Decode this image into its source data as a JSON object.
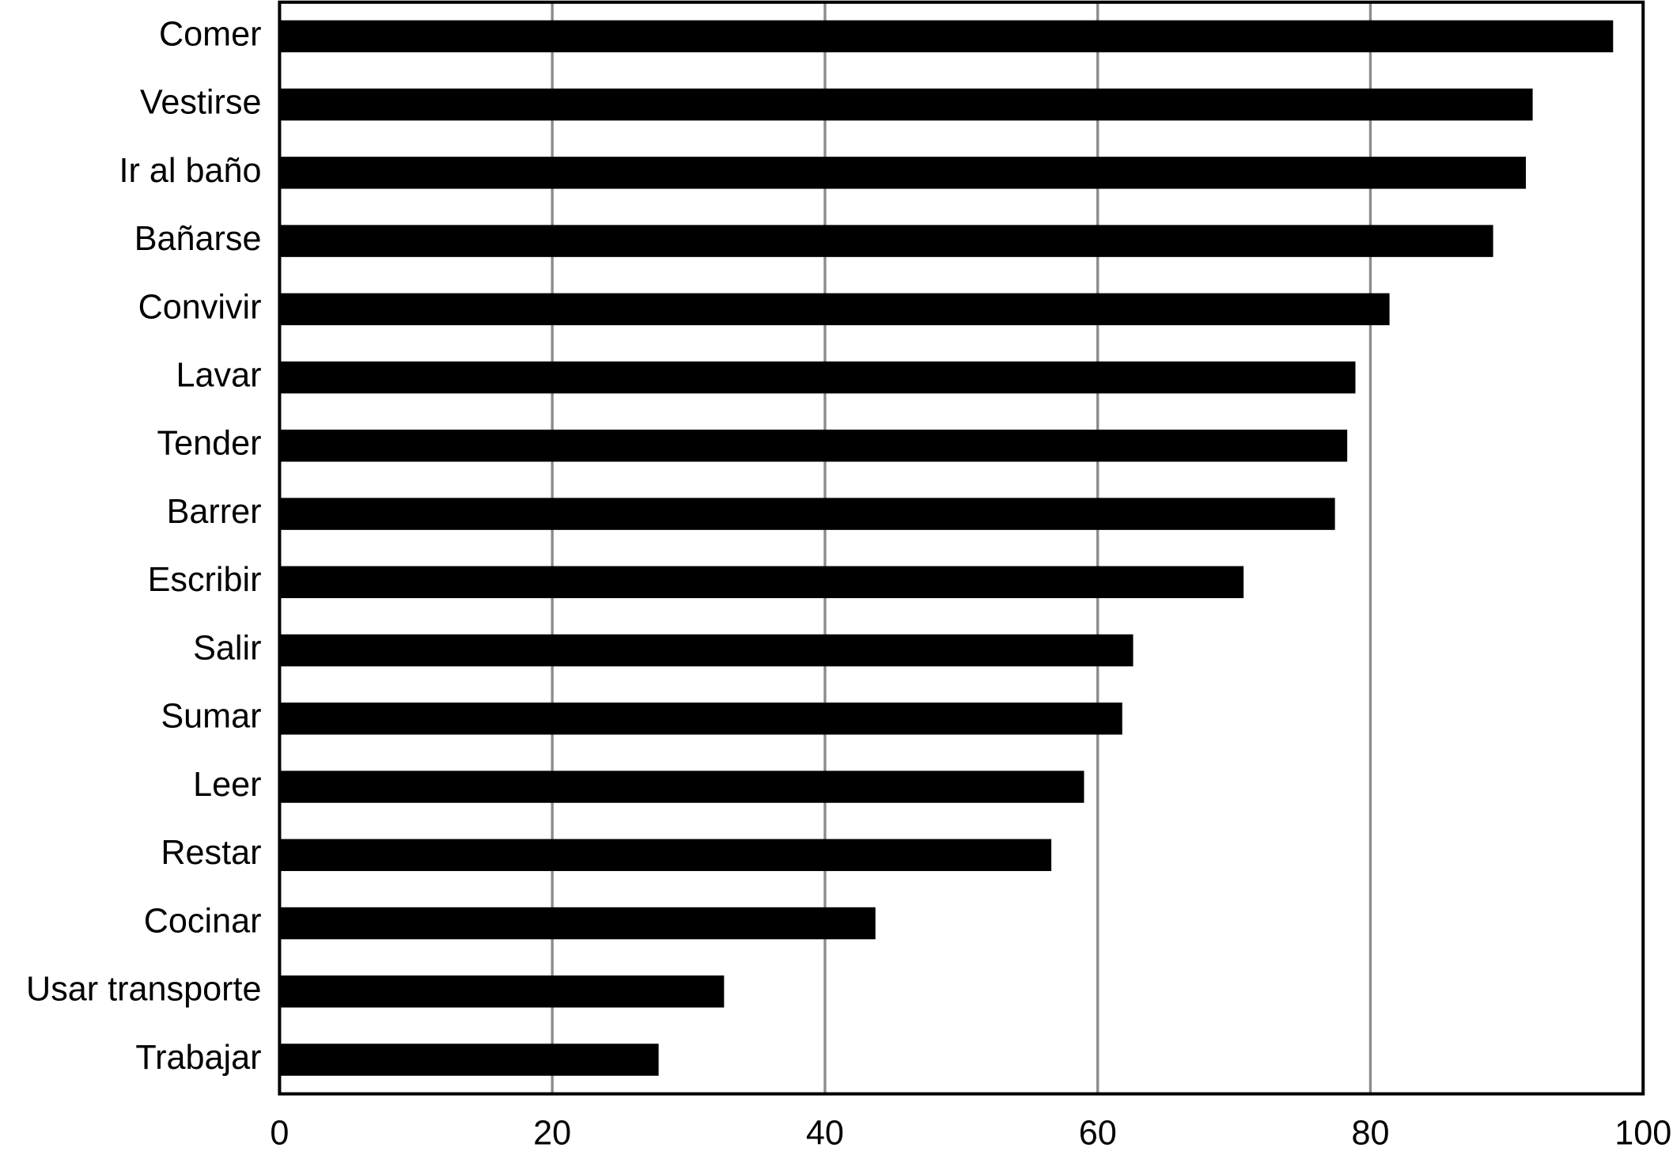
{
  "chart_data": {
    "type": "bar",
    "orientation": "horizontal",
    "categories": [
      "Comer",
      "Vestirse",
      "Ir al baño",
      "Bañarse",
      "Convivir",
      "Lavar",
      "Tender",
      "Barrer",
      "Escribir",
      "Salir",
      "Sumar",
      "Leer",
      "Restar",
      "Cocinar",
      "Usar transporte",
      "Trabajar"
    ],
    "values": [
      97.8,
      91.9,
      91.4,
      89,
      81.4,
      78.9,
      78.3,
      77.4,
      70.7,
      62.6,
      61.8,
      59,
      56.6,
      43.7,
      32.6,
      27.8
    ],
    "color": "#000000",
    "xlim": [
      0,
      100
    ],
    "xticks": [
      0,
      20,
      40,
      60,
      80,
      100
    ],
    "grid": true
  }
}
